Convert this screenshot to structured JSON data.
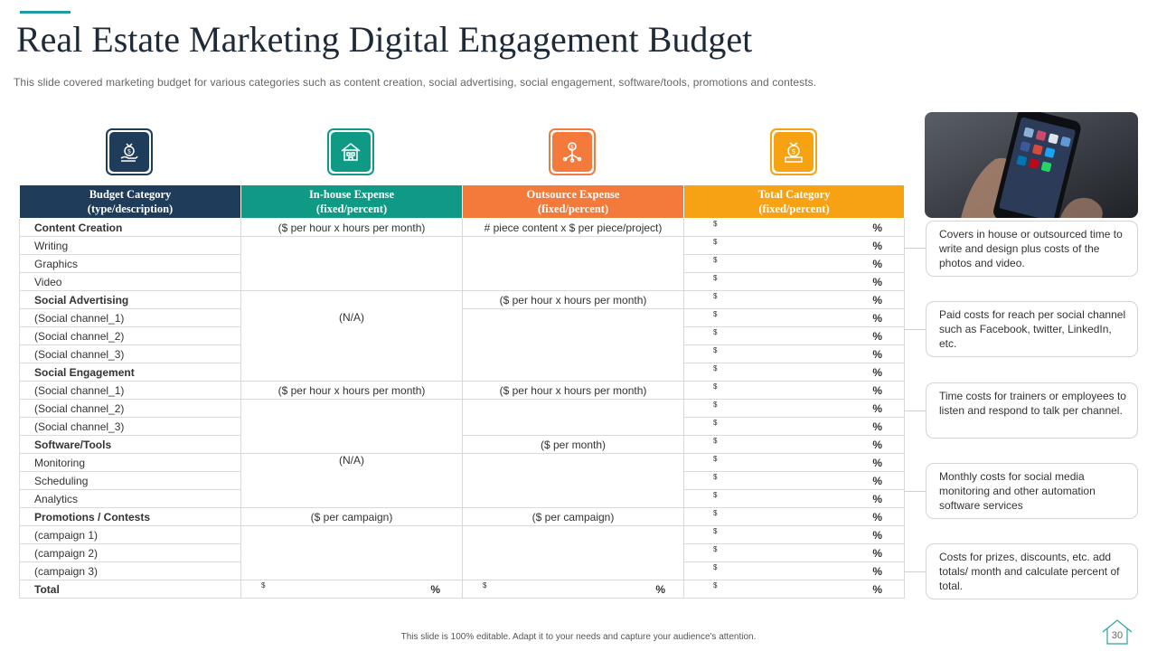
{
  "title": "Real Estate Marketing Digital Engagement Budget",
  "subtitle": "This slide covered  marketing budget for various  categories such as content creation,  social advertising,  social engagement,  software/tools,  promotions and contests.",
  "colors": {
    "navy": "#1f3c5a",
    "teal": "#0f9a85",
    "orange": "#f37a3b",
    "amber": "#f6a213"
  },
  "icons": [
    "money-bag-hand-icon",
    "house-building-icon",
    "dollar-network-icon",
    "money-bag-cash-icon"
  ],
  "headers": {
    "category": [
      "Budget Category",
      "(type/description)"
    ],
    "inhouse": [
      "In-house Expense",
      "(fixed/percent)"
    ],
    "outsource": [
      "Outsource Expense",
      "(fixed/percent)"
    ],
    "total": [
      "Total Category",
      "(fixed/percent)"
    ]
  },
  "rows": {
    "r1": "Content Creation",
    "r2": "Writing",
    "r3": "Graphics",
    "r4": "Video",
    "r5": "Social Advertising",
    "r6": "(Social channel_1)",
    "r7": "(Social channel_2)",
    "r8": "(Social channel_3)",
    "r9": "Social Engagement",
    "r10": "(Social channel_1)",
    "r11": "(Social channel_2)",
    "r12": "(Social channel_3)",
    "r13": "Software/Tools",
    "r14": "Monitoring",
    "r15": "Scheduling",
    "r16": "Analytics",
    "r17": "Promotions / Contests",
    "r18": "(campaign 1)",
    "r19": "(campaign 2)",
    "r20": "(campaign 3)",
    "total": "Total"
  },
  "cells": {
    "ih_content": "($ per hour x   hours per month)",
    "os_content": "# piece content x $ per piece/project)",
    "os_social_ad": "($ per hour x   hours per month)",
    "ih_social_ad": "(N/A)",
    "ih_engagement": "($ per hour x   hours per month)",
    "os_engagement": "($ per hour x   hours per month)",
    "os_software": "($ per month)",
    "ih_software": "(N/A)",
    "ih_promotions": "($ per campaign)",
    "os_promotions": "($ per campaign)"
  },
  "currency_symbol": "$",
  "percent_symbol": "%",
  "notes": [
    "Covers  in house or outsourced time to write and design plus costs of the photos and video.",
    "Paid costs for reach  per social channel  such as Facebook, twitter, LinkedIn,  etc.",
    "Time costs for trainers  or employees to listen and respond to talk per channel.",
    "Monthly costs for social media monitoring and other automation software  services",
    "Costs for prizes, discounts, etc. add totals/ month and calculate percent of total."
  ],
  "footer": "This slide is 100% editable.  Adapt it to your needs and capture your audience's attention.",
  "page_number": "30"
}
